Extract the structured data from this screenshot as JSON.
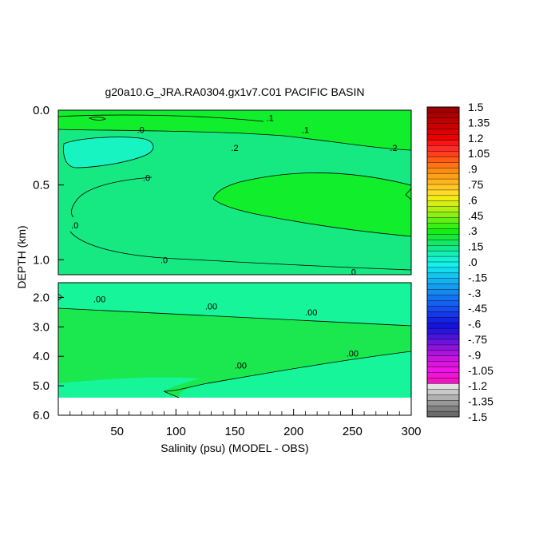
{
  "chart_data": {
    "type": "heatmap",
    "title": "g20a10.G_JRA.RA0304.gx1v7.C01 PACIFIC BASIN",
    "xlabel": "Salinity (psu) (MODEL - OBS)",
    "ylabel": "DEPTH (km)",
    "xlim": [
      0,
      300
    ],
    "x_ticks": [
      {
        "value": 50,
        "label": "50"
      },
      {
        "value": 100,
        "label": "100"
      },
      {
        "value": 150,
        "label": "150"
      },
      {
        "value": 200,
        "label": "200"
      },
      {
        "value": 250,
        "label": "250"
      },
      {
        "value": 300,
        "label": "300"
      }
    ],
    "upper_panel": {
      "ylim": [
        0.0,
        1.1
      ],
      "y_ticks": [
        {
          "value": 0.0,
          "label": "0.0"
        },
        {
          "value": 0.5,
          "label": "0.5"
        },
        {
          "value": 1.0,
          "label": "1.0"
        }
      ],
      "regions": [
        {
          "level": "0.0 to 0.15",
          "color": "#16e882",
          "description": "background"
        },
        {
          "level": "0.15 to 0.3",
          "color": "#10ee2c",
          "description": "surface band"
        },
        {
          "level": "0.15 to 0.3",
          "color": "#10ee2c",
          "description": "central east tongue 0.3-0.85 km"
        },
        {
          "level": "-0.15 to 0.0",
          "color": "#18f3c2",
          "description": "west patch 0.2-0.38 km"
        }
      ],
      "contour_labels": [
        {
          "x": 180,
          "depth": 0.05,
          "text": ".1"
        },
        {
          "x": 210,
          "depth": 0.13,
          "text": ".1"
        },
        {
          "x": 70,
          "depth": 0.13,
          "text": ".0"
        },
        {
          "x": 150,
          "depth": 0.25,
          "text": ".2"
        },
        {
          "x": 285,
          "depth": 0.25,
          "text": ".2"
        },
        {
          "x": 75,
          "depth": 0.45,
          "text": ".0"
        },
        {
          "x": 14,
          "depth": 0.77,
          "text": ".0"
        },
        {
          "x": 90,
          "depth": 1.0,
          "text": ".0"
        },
        {
          "x": 250,
          "depth": 1.08,
          "text": ".0"
        }
      ]
    },
    "lower_panel": {
      "ylim": [
        1.5,
        6.0
      ],
      "no_data_below": 5.4,
      "y_ticks": [
        {
          "value": 2.0,
          "label": "2.0"
        },
        {
          "value": 3.0,
          "label": "3.0"
        },
        {
          "value": 4.0,
          "label": "4.0"
        },
        {
          "value": 5.0,
          "label": "5.0"
        },
        {
          "value": 6.0,
          "label": "6.0"
        }
      ],
      "regions": [
        {
          "level": "-0.15 to 0.0",
          "color": "#16f59a",
          "description": "background"
        },
        {
          "level": "0.0 to 0.15",
          "color": "#1ae84e",
          "description": "band 2.0-5.3 km"
        }
      ],
      "contour_labels": [
        {
          "x": 35,
          "depth": 2.05,
          "text": ".00"
        },
        {
          "x": 130,
          "depth": 2.3,
          "text": ".00"
        },
        {
          "x": 215,
          "depth": 2.5,
          "text": ".00"
        },
        {
          "x": 155,
          "depth": 4.3,
          "text": ".00"
        },
        {
          "x": 250,
          "depth": 3.9,
          "text": ".00"
        }
      ]
    },
    "colorbar": {
      "labels": [
        "1.5",
        "1.35",
        "1.2",
        "1.05",
        ".9",
        ".75",
        ".6",
        ".45",
        ".3",
        ".15",
        ".0",
        "-.15",
        "-.3",
        "-.45",
        "-.6",
        "-.75",
        "-.9",
        "-1.05",
        "-1.2",
        "-1.35",
        "-1.5"
      ],
      "colors": [
        "#9e0000",
        "#ad0000",
        "#bd0000",
        "#cc0000",
        "#dc0000",
        "#ea0000",
        "#f81515",
        "#ff2a2a",
        "#ff3e1c",
        "#ff5a14",
        "#ff7314",
        "#ff8a14",
        "#ffa019",
        "#ffb41e",
        "#ffc822",
        "#ffda28",
        "#f0ee14",
        "#d2f014",
        "#b0f014",
        "#8cf014",
        "#60f014",
        "#38f014",
        "#14ee14",
        "#14e83a",
        "#14e864",
        "#14e88c",
        "#14f0b4",
        "#14f0d2",
        "#14f0ec",
        "#14dcf0",
        "#14c4f0",
        "#14b0f0",
        "#149cf0",
        "#1488f0",
        "#1474f0",
        "#1460f0",
        "#144cf0",
        "#1438e6",
        "#1424e0",
        "#1414dc",
        "#2814dc",
        "#4a14dc",
        "#6c14dc",
        "#8c14dc",
        "#aa14dc",
        "#c814dc",
        "#dc14dc",
        "#ee14e8",
        "#f014d6",
        "#f014c2",
        "#e0e0e0",
        "#c8c8c8",
        "#b0b0b0",
        "#989898",
        "#808080",
        "#6a6a6a"
      ]
    }
  }
}
